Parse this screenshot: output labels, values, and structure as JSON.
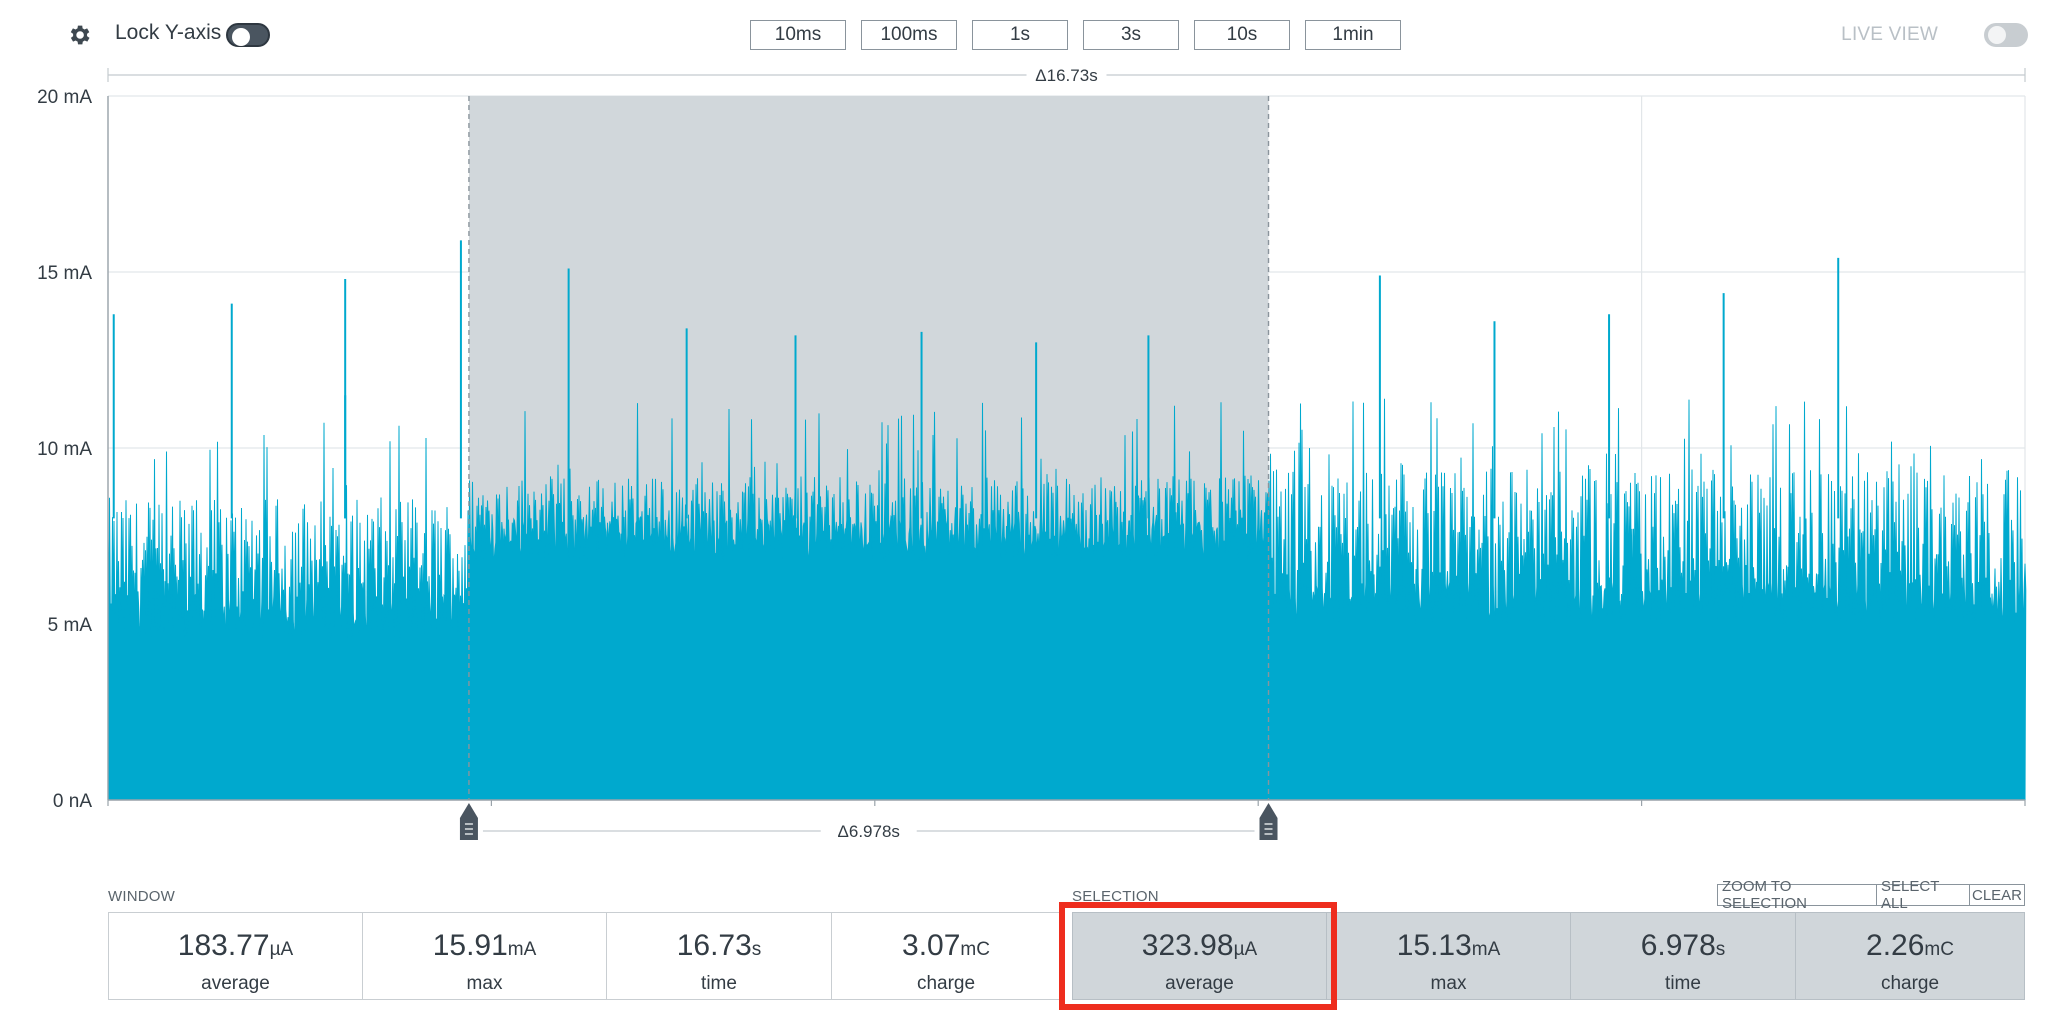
{
  "toolbar": {
    "lock_y_axis_label": "Lock Y-axis",
    "lock_y_axis_on": true,
    "window_buttons": [
      "10ms",
      "100ms",
      "1s",
      "3s",
      "10s",
      "1min"
    ],
    "live_view_label": "LIVE VIEW",
    "live_view_on": false
  },
  "chart_data": {
    "type": "area",
    "ylim": [
      0,
      20
    ],
    "y_ticks": [
      "20 mA",
      "15 mA",
      "10 mA",
      "5 mA",
      "0 nA"
    ],
    "y_tick_values": [
      20,
      15,
      10,
      5,
      0
    ],
    "window_duration_s": 16.73,
    "window_delta_label": "Δ16.73s",
    "selection": {
      "start_s": 3.15,
      "end_s": 10.128,
      "delta_label": "Δ6.978s"
    },
    "series": [
      {
        "color": "#00a9ce",
        "segments": [
          {
            "start_s": 0.0,
            "end_s": 3.15,
            "base_mA": 4.6,
            "top_mA": 8.6
          },
          {
            "start_s": 3.15,
            "end_s": 10.128,
            "base_mA": 6.8,
            "top_mA": 9.2
          },
          {
            "start_s": 10.128,
            "end_s": 16.73,
            "base_mA": 5.0,
            "top_mA": 9.4
          }
        ],
        "spikes": [
          {
            "t_s": 0.05,
            "mA": 13.8
          },
          {
            "t_s": 1.08,
            "mA": 14.1
          },
          {
            "t_s": 2.07,
            "mA": 14.8
          },
          {
            "t_s": 2.07,
            "mA": 11.5
          },
          {
            "t_s": 3.08,
            "mA": 15.9
          },
          {
            "t_s": 4.02,
            "mA": 15.1
          },
          {
            "t_s": 5.05,
            "mA": 13.4
          },
          {
            "t_s": 6.0,
            "mA": 13.2
          },
          {
            "t_s": 7.1,
            "mA": 13.3
          },
          {
            "t_s": 8.1,
            "mA": 13.0
          },
          {
            "t_s": 9.08,
            "mA": 13.2
          },
          {
            "t_s": 11.1,
            "mA": 14.9
          },
          {
            "t_s": 12.1,
            "mA": 13.6
          },
          {
            "t_s": 13.1,
            "mA": 13.8
          },
          {
            "t_s": 14.1,
            "mA": 14.4
          },
          {
            "t_s": 15.1,
            "mA": 15.4
          },
          {
            "t_s": 0.95,
            "mA": 2.5,
            "dip": true
          }
        ]
      }
    ]
  },
  "window_stats": {
    "label": "WINDOW",
    "items": [
      {
        "value": "183.77",
        "unit": "µA",
        "caption": "average"
      },
      {
        "value": "15.91",
        "unit": "mA",
        "caption": "max"
      },
      {
        "value": "16.73",
        "unit": "s",
        "caption": "time"
      },
      {
        "value": "3.07",
        "unit": "mC",
        "caption": "charge"
      }
    ]
  },
  "selection_stats": {
    "label": "SELECTION",
    "buttons": [
      "ZOOM TO SELECTION",
      "SELECT ALL",
      "CLEAR"
    ],
    "items": [
      {
        "value": "323.98",
        "unit": "µA",
        "caption": "average"
      },
      {
        "value": "15.13",
        "unit": "mA",
        "caption": "max"
      },
      {
        "value": "6.978",
        "unit": "s",
        "caption": "time"
      },
      {
        "value": "2.26",
        "unit": "mC",
        "caption": "charge"
      }
    ]
  },
  "highlight_color": "#ee2d1e"
}
